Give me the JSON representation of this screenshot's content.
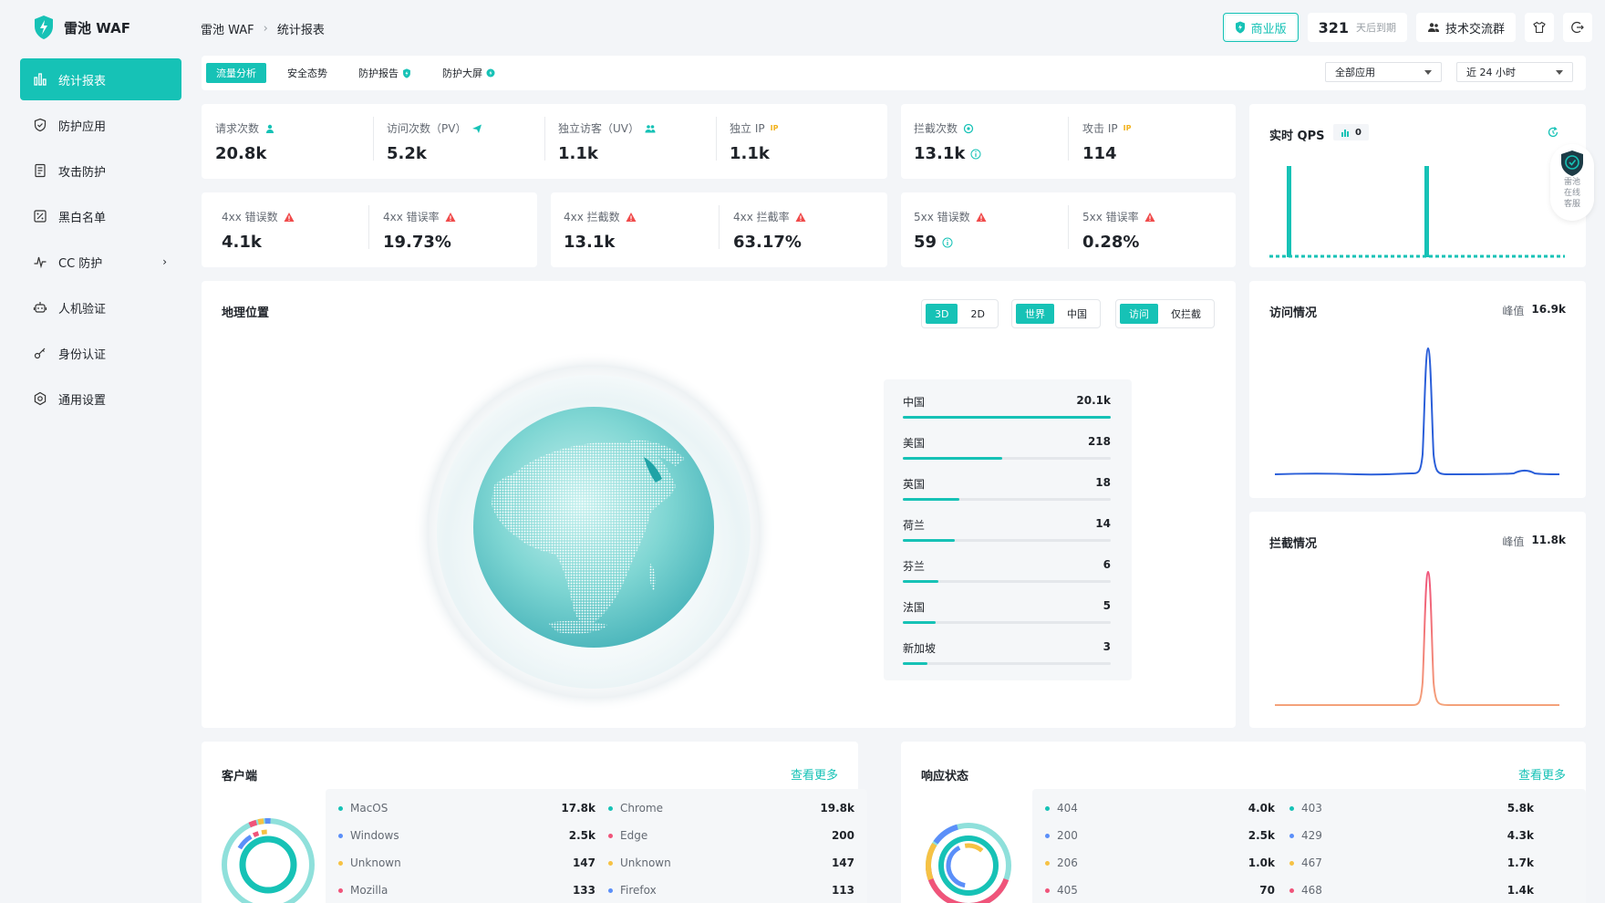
{
  "app": {
    "name": "雷池 WAF"
  },
  "sidebar": {
    "items": [
      {
        "label": "统计报表",
        "icon": "bar-chart-icon",
        "active": true
      },
      {
        "label": "防护应用",
        "icon": "shield-icon"
      },
      {
        "label": "攻击防护",
        "icon": "document-icon"
      },
      {
        "label": "黑白名单",
        "icon": "list-icon"
      },
      {
        "label": "CC 防护",
        "icon": "pulse-icon",
        "has_submenu": true
      },
      {
        "label": "人机验证",
        "icon": "robot-icon"
      },
      {
        "label": "身份认证",
        "icon": "key-icon"
      },
      {
        "label": "通用设置",
        "icon": "gear-icon"
      }
    ]
  },
  "header": {
    "breadcrumb": [
      "雷池 WAF",
      "统计报表"
    ],
    "edition": "商业版",
    "days_left": "321",
    "days_suffix": "天后到期",
    "group": "技术交流群"
  },
  "tabs": [
    {
      "label": "流量分析",
      "active": true
    },
    {
      "label": "安全态势"
    },
    {
      "label": "防护报告"
    },
    {
      "label": "防护大屏"
    }
  ],
  "filters": {
    "app": "全部应用",
    "range": "近 24 小时"
  },
  "stats_row1": {
    "requests": {
      "label": "请求次数",
      "value": "20.8k"
    },
    "pv": {
      "label": "访问次数（PV）",
      "value": "5.2k"
    },
    "uv": {
      "label": "独立访客（UV）",
      "value": "1.1k"
    },
    "ip": {
      "label": "独立 IP",
      "value": "1.1k"
    },
    "blocks": {
      "label": "拦截次数",
      "value": "13.1k"
    },
    "attack_ip": {
      "label": "攻击 IP",
      "value": "114"
    }
  },
  "stats_row2": {
    "e4xx": {
      "label": "4xx 错误数",
      "value": "4.1k"
    },
    "e4xx_rate": {
      "label": "4xx 错误率",
      "value": "19.73%"
    },
    "b4xx": {
      "label": "4xx 拦截数",
      "value": "13.1k"
    },
    "b4xx_rate": {
      "label": "4xx 拦截率",
      "value": "63.17%"
    },
    "e5xx": {
      "label": "5xx 错误数",
      "value": "59"
    },
    "e5xx_rate": {
      "label": "5xx 错误率",
      "value": "0.28%"
    }
  },
  "qps": {
    "title": "实时 QPS",
    "value": "0"
  },
  "geo": {
    "title": "地理位置",
    "toggle_dim": [
      "3D",
      "2D"
    ],
    "toggle_region": [
      "世界",
      "中国"
    ],
    "toggle_mode": [
      "访问",
      "仅拦截"
    ],
    "countries": [
      {
        "name": "中国",
        "value": "20.1k",
        "ratio": 1.0
      },
      {
        "name": "美国",
        "value": "218",
        "ratio": 0.48
      },
      {
        "name": "英国",
        "value": "18",
        "ratio": 0.27
      },
      {
        "name": "荷兰",
        "value": "14",
        "ratio": 0.25
      },
      {
        "name": "芬兰",
        "value": "6",
        "ratio": 0.17
      },
      {
        "name": "法国",
        "value": "5",
        "ratio": 0.16
      },
      {
        "name": "新加坡",
        "value": "3",
        "ratio": 0.12
      }
    ]
  },
  "visits": {
    "title": "访问情况",
    "peak_label": "峰值",
    "peak": "16.9k",
    "color": "#2b5fd9"
  },
  "blocked": {
    "title": "拦截情况",
    "peak_label": "峰值",
    "peak": "11.8k",
    "color": "#f0547a"
  },
  "clients": {
    "title": "客户端",
    "more": "查看更多",
    "left": [
      {
        "name": "MacOS",
        "value": "17.8k",
        "color": "#16c2b6"
      },
      {
        "name": "Windows",
        "value": "2.5k",
        "color": "#5b8ff9"
      },
      {
        "name": "Unknown",
        "value": "147",
        "color": "#f6c244"
      },
      {
        "name": "Mozilla",
        "value": "133",
        "color": "#f0547a"
      }
    ],
    "right": [
      {
        "name": "Chrome",
        "value": "19.8k",
        "color": "#16c2b6"
      },
      {
        "name": "Edge",
        "value": "200",
        "color": "#f0547a"
      },
      {
        "name": "Unknown",
        "value": "147",
        "color": "#f6c244"
      },
      {
        "name": "Firefox",
        "value": "113",
        "color": "#5b8ff9"
      }
    ]
  },
  "responses": {
    "title": "响应状态",
    "more": "查看更多",
    "left": [
      {
        "name": "404",
        "value": "4.0k",
        "color": "#16c2b6"
      },
      {
        "name": "200",
        "value": "2.5k",
        "color": "#5b8ff9"
      },
      {
        "name": "206",
        "value": "1.0k",
        "color": "#f6c244"
      },
      {
        "name": "405",
        "value": "70",
        "color": "#f0547a"
      }
    ],
    "right": [
      {
        "name": "403",
        "value": "5.8k",
        "color": "#16c2b6"
      },
      {
        "name": "429",
        "value": "4.3k",
        "color": "#5b8ff9"
      },
      {
        "name": "467",
        "value": "1.7k",
        "color": "#f6c244"
      },
      {
        "name": "468",
        "value": "1.4k",
        "color": "#f0547a"
      }
    ]
  },
  "service": {
    "text": "雷池在线客服"
  },
  "theme": {
    "accent": "#16c2b6"
  }
}
